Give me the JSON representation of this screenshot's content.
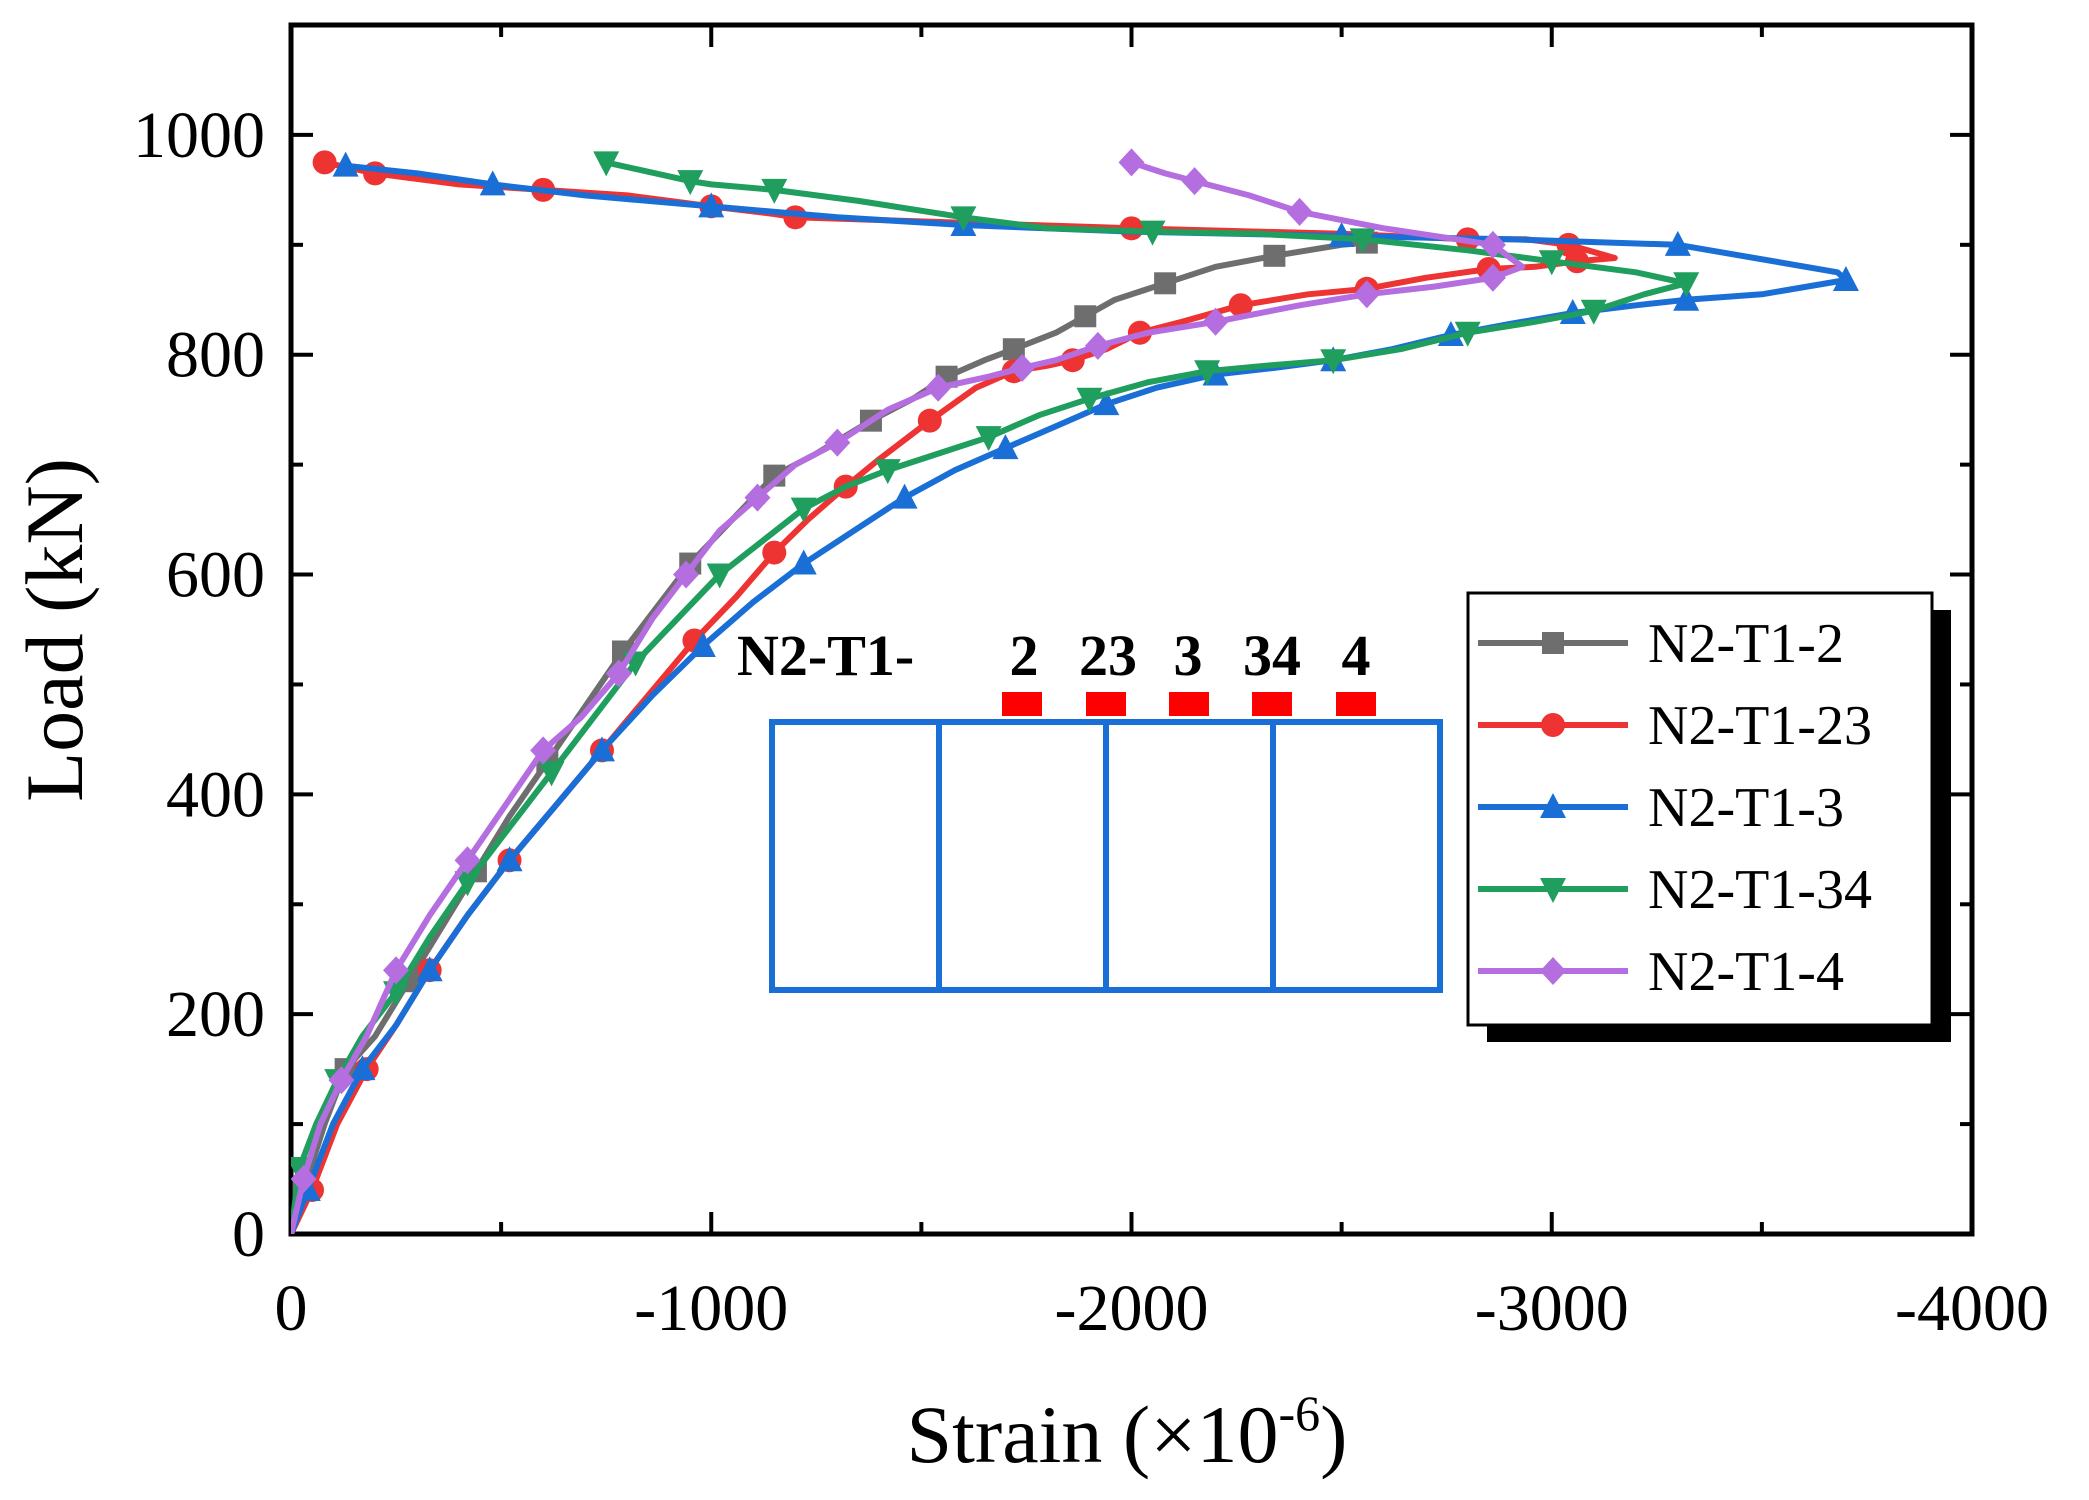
{
  "chart_data": {
    "type": "line",
    "title": "",
    "xlabel": "Strain (×10",
    "xlabel_sup": "-6",
    "xlabel_end": ")",
    "ylabel": "Load (kN)",
    "xlim": [
      0,
      -4000
    ],
    "ylim": [
      0,
      1100
    ],
    "xticks": [
      0,
      -1000,
      -2000,
      -3000,
      -4000
    ],
    "xtick_labels": [
      "0",
      "-1000",
      "-2000",
      "-3000",
      "-4000"
    ],
    "yticks": [
      0,
      200,
      400,
      600,
      800,
      1000
    ],
    "ytick_labels": [
      "0",
      "200",
      "400",
      "600",
      "800",
      "1000"
    ],
    "grid": false,
    "legend_position": "right-middle",
    "series": [
      {
        "name": "N2-T1-2",
        "color": "#6e6e6e",
        "marker": "square",
        "x": [
          0,
          -30,
          -80,
          -130,
          -200,
          -280,
          -360,
          -440,
          -520,
          -610,
          -700,
          -790,
          -870,
          -950,
          -1050,
          -1150,
          -1250,
          -1380,
          -1480,
          -1560,
          -1650,
          -1720,
          -1820,
          -1890,
          -1960,
          -2080,
          -2200,
          -2340,
          -2500,
          -2560
        ],
        "y": [
          0,
          40,
          100,
          150,
          180,
          230,
          280,
          330,
          380,
          430,
          480,
          530,
          570,
          610,
          650,
          690,
          710,
          740,
          760,
          780,
          795,
          805,
          820,
          835,
          850,
          865,
          880,
          890,
          900,
          902
        ]
      },
      {
        "name": "N2-T1-23",
        "color": "#ee3333",
        "marker": "circle",
        "x": [
          0,
          -50,
          -110,
          -180,
          -250,
          -330,
          -420,
          -520,
          -630,
          -740,
          -850,
          -960,
          -1060,
          -1150,
          -1230,
          -1320,
          -1400,
          -1520,
          -1630,
          -1720,
          -1800,
          -1860,
          -1940,
          -2020,
          -2120,
          -2260,
          -2420,
          -2560,
          -2700,
          -2850,
          -2960,
          -3060,
          -3150,
          -3040,
          -2940,
          -2800,
          -2500,
          -2000,
          -1600,
          -1200,
          -1150,
          -1000,
          -800,
          -600,
          -400,
          -200,
          -80
        ],
        "y": [
          0,
          40,
          100,
          150,
          190,
          240,
          290,
          340,
          390,
          440,
          490,
          540,
          580,
          620,
          650,
          680,
          705,
          740,
          770,
          785,
          790,
          795,
          805,
          820,
          830,
          845,
          855,
          860,
          870,
          878,
          880,
          885,
          888,
          900,
          905,
          905,
          910,
          915,
          920,
          925,
          928,
          935,
          945,
          950,
          955,
          965,
          975
        ]
      },
      {
        "name": "N2-T1-3",
        "color": "#1a6fd6",
        "marker": "triangle-up",
        "x": [
          0,
          -40,
          -100,
          -170,
          -250,
          -330,
          -420,
          -520,
          -630,
          -740,
          -860,
          -980,
          -1100,
          -1220,
          -1340,
          -1460,
          -1580,
          -1700,
          -1820,
          -1940,
          -2060,
          -2200,
          -2340,
          -2480,
          -2620,
          -2760,
          -2900,
          -3050,
          -3200,
          -3320,
          -3500,
          -3700,
          -3680,
          -3300,
          -2900,
          -2500,
          -2000,
          -1600,
          -1300,
          -1000,
          -700,
          -480,
          -300,
          -130
        ],
        "y": [
          0,
          40,
          100,
          150,
          190,
          240,
          290,
          340,
          390,
          440,
          490,
          535,
          575,
          610,
          640,
          670,
          695,
          715,
          735,
          755,
          770,
          782,
          788,
          795,
          805,
          818,
          828,
          838,
          845,
          850,
          855,
          868,
          875,
          900,
          905,
          908,
          912,
          918,
          925,
          935,
          945,
          955,
          965,
          972
        ]
      },
      {
        "name": "N2-T1-34",
        "color": "#1f9e5e",
        "marker": "triangle-down",
        "x": [
          0,
          -20,
          -60,
          -110,
          -170,
          -250,
          -330,
          -420,
          -520,
          -620,
          -720,
          -820,
          -920,
          -1020,
          -1120,
          -1220,
          -1320,
          -1420,
          -1540,
          -1660,
          -1780,
          -1900,
          -2040,
          -2180,
          -2320,
          -2480,
          -2640,
          -2800,
          -2960,
          -3100,
          -3220,
          -3320,
          -3200,
          -3000,
          -2800,
          -2550,
          -2300,
          -2050,
          -1800,
          -1600,
          -1350,
          -1150,
          -1000,
          -950,
          -750
        ],
        "y": [
          0,
          60,
          100,
          140,
          180,
          220,
          270,
          320,
          370,
          420,
          470,
          520,
          560,
          600,
          630,
          660,
          680,
          695,
          710,
          725,
          745,
          760,
          775,
          785,
          790,
          795,
          805,
          820,
          830,
          840,
          855,
          865,
          875,
          885,
          895,
          905,
          910,
          912,
          915,
          925,
          940,
          950,
          955,
          958,
          975
        ]
      },
      {
        "name": "N2-T1-4",
        "color": "#b46ee0",
        "marker": "diamond",
        "x": [
          0,
          -30,
          -70,
          -120,
          -180,
          -250,
          -330,
          -420,
          -510,
          -600,
          -690,
          -780,
          -860,
          -940,
          -1020,
          -1110,
          -1200,
          -1300,
          -1420,
          -1540,
          -1660,
          -1740,
          -1820,
          -1920,
          -2040,
          -2200,
          -2400,
          -2560,
          -2720,
          -2860,
          -2930,
          -2860,
          -2600,
          -2400,
          -2280,
          -2150,
          -2080,
          -2000
        ],
        "y": [
          0,
          50,
          100,
          140,
          180,
          240,
          290,
          340,
          390,
          440,
          470,
          510,
          560,
          600,
          640,
          670,
          700,
          720,
          750,
          770,
          780,
          788,
          795,
          808,
          820,
          830,
          845,
          855,
          862,
          870,
          880,
          900,
          915,
          930,
          945,
          958,
          965,
          975
        ]
      }
    ],
    "inset": {
      "prefix": "N2-T1-",
      "labels": [
        "2",
        "23",
        "3",
        "34",
        "4"
      ]
    }
  }
}
